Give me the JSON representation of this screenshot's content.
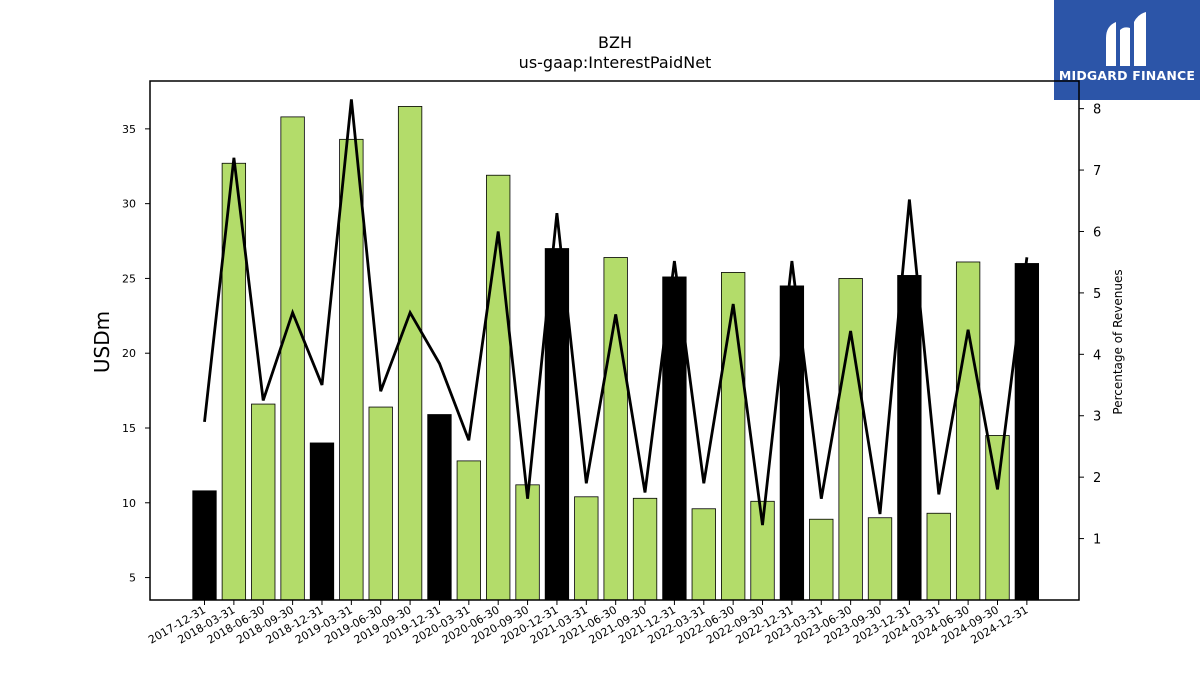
{
  "brand": {
    "name": "MIDGARD FINANCE",
    "logo_icon": "midgard-m-logo-icon",
    "bg_color": "#2c55a8"
  },
  "chart_data": {
    "type": "bar",
    "title": "BZH",
    "subtitle": "us-gaap:InterestPaidNet",
    "ylabel": "USDm",
    "y2label": "Percentage of Revenues",
    "ylim": [
      3.5,
      38.2
    ],
    "y2lim": [
      0.0,
      8.45
    ],
    "yticks": [
      5,
      10,
      15,
      20,
      25,
      30,
      35
    ],
    "y2ticks": [
      1,
      2,
      3,
      4,
      5,
      6,
      7,
      8
    ],
    "categories": [
      "2017-12-31",
      "2018-03-31",
      "2018-06-30",
      "2018-09-30",
      "2018-12-31",
      "2019-03-31",
      "2019-06-30",
      "2019-09-30",
      "2019-12-31",
      "2020-03-31",
      "2020-06-30",
      "2020-09-30",
      "2020-12-31",
      "2021-03-31",
      "2021-06-30",
      "2021-09-30",
      "2021-12-31",
      "2022-03-31",
      "2022-06-30",
      "2022-09-30",
      "2022-12-31",
      "2023-03-31",
      "2023-06-30",
      "2023-09-30",
      "2023-12-31",
      "2024-03-31",
      "2024-06-30",
      "2024-09-30",
      "2024-12-31"
    ],
    "series": [
      {
        "values": [
          10.8,
          32.7,
          16.6,
          35.8,
          14.0,
          34.3,
          16.4,
          36.5,
          15.9,
          12.8,
          31.9,
          11.2,
          27.0,
          10.4,
          26.4,
          10.3,
          25.1,
          9.6,
          25.4,
          10.1,
          24.5,
          8.9,
          25.0,
          9.0,
          25.2,
          9.3,
          26.1,
          14.5,
          26.0
        ],
        "bar_colors": [
          "#000000",
          "#b3dc6a",
          "#b3dc6a",
          "#b3dc6a",
          "#000000",
          "#b3dc6a",
          "#b3dc6a",
          "#b3dc6a",
          "#000000",
          "#b3dc6a",
          "#b3dc6a",
          "#b3dc6a",
          "#000000",
          "#b3dc6a",
          "#b3dc6a",
          "#b3dc6a",
          "#000000",
          "#b3dc6a",
          "#b3dc6a",
          "#b3dc6a",
          "#000000",
          "#b3dc6a",
          "#b3dc6a",
          "#b3dc6a",
          "#000000",
          "#b3dc6a",
          "#b3dc6a",
          "#b3dc6a",
          "#000000"
        ]
      },
      {
        "type": "line",
        "axis": "right",
        "color": "#000000",
        "values": [
          2.9,
          7.2,
          3.25,
          4.68,
          3.5,
          8.15,
          3.4,
          4.68,
          3.85,
          2.6,
          6.0,
          1.65,
          6.3,
          1.9,
          4.65,
          1.75,
          5.52,
          1.9,
          4.82,
          1.22,
          5.52,
          1.65,
          4.38,
          1.4,
          6.52,
          1.72,
          4.4,
          1.8,
          5.58
        ]
      }
    ],
    "grid": false,
    "legend": "none"
  }
}
